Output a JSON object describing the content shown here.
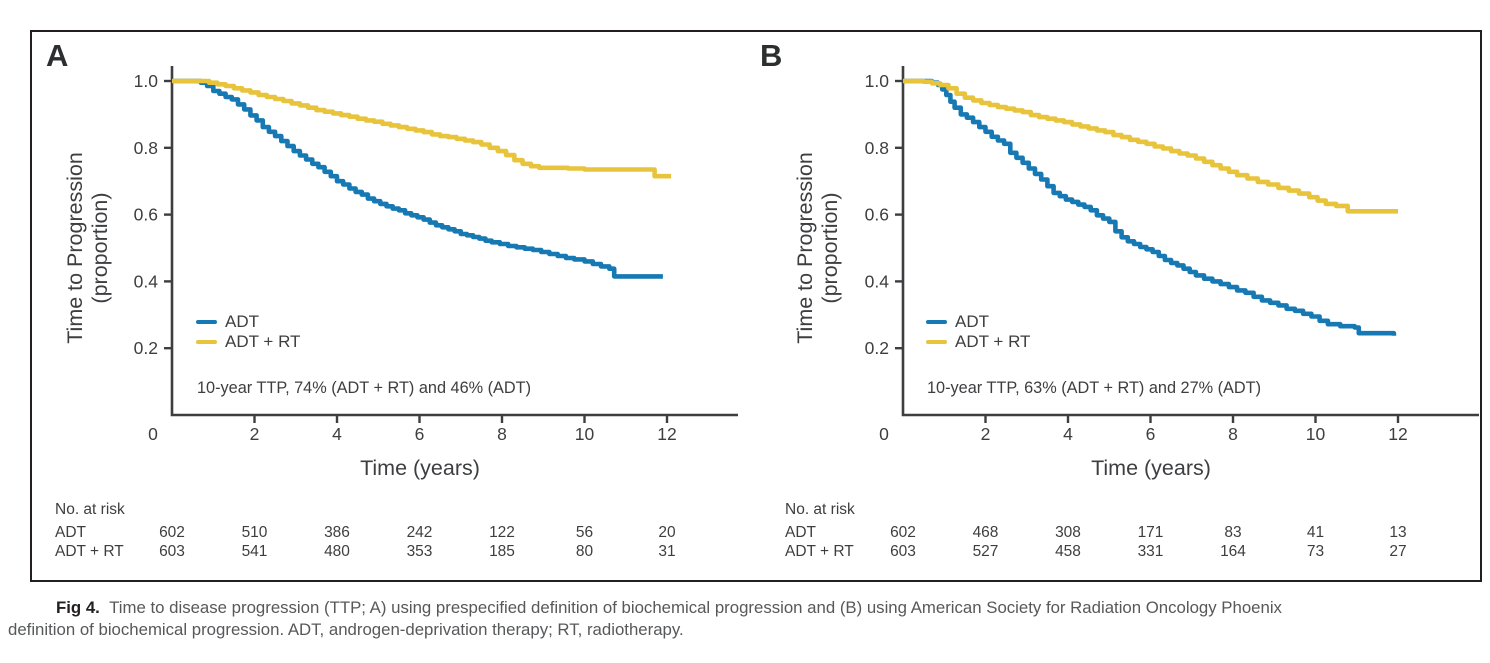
{
  "figure": {
    "caption": {
      "label": "Fig 4.",
      "line1": "Time to disease progression (TTP; A) using prespecified definition of biochemical progression and (B) using American Society for Radiation Oncology Phoenix",
      "line2": "definition of biochemical progression. ADT, androgen-deprivation therapy; RT, radiotherapy."
    },
    "colors": {
      "adt": "#1779b4",
      "adt_rt": "#e8c43c",
      "axis": "#3d3e40",
      "caption_text": "#57585a",
      "border": "#231f20"
    }
  },
  "chart_data": [
    {
      "type": "line",
      "panel": "A",
      "xlabel": "Time (years)",
      "ylabel_line1": "Time to Progression",
      "ylabel_line2": "(proportion)",
      "xlim": [
        0,
        13.7
      ],
      "ylim": [
        0,
        1.0
      ],
      "xticks": [
        0,
        2,
        4,
        6,
        8,
        10,
        12
      ],
      "yticks": [
        1.0,
        0.8,
        0.6,
        0.4,
        0.2
      ],
      "grid": false,
      "legend_position": "lower-left",
      "legend": [
        {
          "name": "ADT",
          "color_key": "adt"
        },
        {
          "name": "ADT + RT",
          "color_key": "adt_rt"
        }
      ],
      "annotation": "10-year TTP, 74% (ADT + RT) and 46% (ADT)",
      "series": [
        {
          "name": "ADT",
          "color_key": "adt",
          "step_points": [
            [
              0,
              1
            ],
            [
              0.55,
              1
            ],
            [
              0.7,
              0.995
            ],
            [
              0.85,
              0.985
            ],
            [
              1.0,
              0.97
            ],
            [
              1.15,
              0.962
            ],
            [
              1.3,
              0.952
            ],
            [
              1.45,
              0.945
            ],
            [
              1.6,
              0.93
            ],
            [
              1.75,
              0.915
            ],
            [
              1.9,
              0.897
            ],
            [
              2.05,
              0.882
            ],
            [
              2.2,
              0.862
            ],
            [
              2.35,
              0.848
            ],
            [
              2.5,
              0.835
            ],
            [
              2.65,
              0.82
            ],
            [
              2.8,
              0.805
            ],
            [
              2.95,
              0.79
            ],
            [
              3.1,
              0.777
            ],
            [
              3.25,
              0.765
            ],
            [
              3.4,
              0.752
            ],
            [
              3.55,
              0.742
            ],
            [
              3.7,
              0.728
            ],
            [
              3.85,
              0.715
            ],
            [
              4.0,
              0.7
            ],
            [
              4.15,
              0.69
            ],
            [
              4.3,
              0.678
            ],
            [
              4.45,
              0.668
            ],
            [
              4.6,
              0.66
            ],
            [
              4.75,
              0.648
            ],
            [
              4.9,
              0.64
            ],
            [
              5.05,
              0.632
            ],
            [
              5.2,
              0.625
            ],
            [
              5.35,
              0.618
            ],
            [
              5.5,
              0.613
            ],
            [
              5.65,
              0.604
            ],
            [
              5.8,
              0.598
            ],
            [
              5.95,
              0.592
            ],
            [
              6.1,
              0.585
            ],
            [
              6.25,
              0.576
            ],
            [
              6.4,
              0.568
            ],
            [
              6.55,
              0.562
            ],
            [
              6.7,
              0.556
            ],
            [
              6.85,
              0.55
            ],
            [
              7.0,
              0.542
            ],
            [
              7.15,
              0.538
            ],
            [
              7.3,
              0.533
            ],
            [
              7.45,
              0.528
            ],
            [
              7.6,
              0.522
            ],
            [
              7.75,
              0.517
            ],
            [
              7.95,
              0.512
            ],
            [
              8.15,
              0.506
            ],
            [
              8.35,
              0.502
            ],
            [
              8.55,
              0.498
            ],
            [
              8.75,
              0.494
            ],
            [
              8.95,
              0.488
            ],
            [
              9.15,
              0.482
            ],
            [
              9.35,
              0.476
            ],
            [
              9.55,
              0.47
            ],
            [
              9.75,
              0.466
            ],
            [
              10.0,
              0.46
            ],
            [
              10.2,
              0.452
            ],
            [
              10.4,
              0.445
            ],
            [
              10.6,
              0.438
            ],
            [
              10.72,
              0.415
            ],
            [
              11.9,
              0.415
            ]
          ]
        },
        {
          "name": "ADT + RT",
          "color_key": "adt_rt",
          "step_points": [
            [
              0,
              1
            ],
            [
              0.7,
              1
            ],
            [
              0.9,
              0.995
            ],
            [
              1.1,
              0.99
            ],
            [
              1.3,
              0.985
            ],
            [
              1.5,
              0.978
            ],
            [
              1.7,
              0.972
            ],
            [
              1.9,
              0.966
            ],
            [
              2.1,
              0.958
            ],
            [
              2.3,
              0.952
            ],
            [
              2.5,
              0.946
            ],
            [
              2.7,
              0.94
            ],
            [
              2.9,
              0.933
            ],
            [
              3.1,
              0.927
            ],
            [
              3.3,
              0.92
            ],
            [
              3.5,
              0.913
            ],
            [
              3.7,
              0.908
            ],
            [
              3.9,
              0.903
            ],
            [
              4.1,
              0.898
            ],
            [
              4.3,
              0.893
            ],
            [
              4.5,
              0.887
            ],
            [
              4.7,
              0.882
            ],
            [
              4.9,
              0.878
            ],
            [
              5.1,
              0.872
            ],
            [
              5.3,
              0.867
            ],
            [
              5.5,
              0.862
            ],
            [
              5.7,
              0.857
            ],
            [
              5.9,
              0.852
            ],
            [
              6.1,
              0.847
            ],
            [
              6.3,
              0.84
            ],
            [
              6.5,
              0.835
            ],
            [
              6.7,
              0.832
            ],
            [
              6.9,
              0.827
            ],
            [
              7.1,
              0.822
            ],
            [
              7.3,
              0.817
            ],
            [
              7.5,
              0.81
            ],
            [
              7.7,
              0.8
            ],
            [
              7.9,
              0.79
            ],
            [
              8.1,
              0.778
            ],
            [
              8.3,
              0.763
            ],
            [
              8.5,
              0.752
            ],
            [
              8.7,
              0.745
            ],
            [
              8.9,
              0.74
            ],
            [
              9.6,
              0.738
            ],
            [
              10.0,
              0.735
            ],
            [
              11.62,
              0.735
            ],
            [
              11.7,
              0.715
            ],
            [
              12.1,
              0.715
            ]
          ]
        }
      ],
      "risk_table": {
        "title": "No. at risk",
        "times": [
          0,
          2,
          4,
          6,
          8,
          10,
          12
        ],
        "rows": [
          {
            "label": "ADT",
            "values": [
              "602",
              "510",
              "386",
              "242",
              "122",
              "56",
              "20"
            ]
          },
          {
            "label": "ADT + RT",
            "values": [
              "603",
              "541",
              "480",
              "353",
              "185",
              "80",
              "31"
            ]
          }
        ]
      }
    },
    {
      "type": "line",
      "panel": "B",
      "xlabel": "Time (years)",
      "ylabel_line1": "Time to Progression",
      "ylabel_line2": "(proportion)",
      "xlim": [
        0,
        13.7
      ],
      "ylim": [
        0,
        1.0
      ],
      "xticks": [
        0,
        2,
        4,
        6,
        8,
        10,
        12
      ],
      "yticks": [
        1.0,
        0.8,
        0.6,
        0.4,
        0.2
      ],
      "grid": false,
      "legend_position": "lower-left",
      "legend": [
        {
          "name": "ADT",
          "color_key": "adt"
        },
        {
          "name": "ADT + RT",
          "color_key": "adt_rt"
        }
      ],
      "annotation": "10-year TTP, 63% (ADT + RT) and 27% (ADT)",
      "series": [
        {
          "name": "ADT",
          "color_key": "adt",
          "step_points": [
            [
              0,
              1
            ],
            [
              0.55,
              1
            ],
            [
              0.7,
              0.995
            ],
            [
              0.85,
              0.988
            ],
            [
              0.95,
              0.975
            ],
            [
              1.05,
              0.958
            ],
            [
              1.15,
              0.938
            ],
            [
              1.25,
              0.92
            ],
            [
              1.4,
              0.9
            ],
            [
              1.55,
              0.89
            ],
            [
              1.7,
              0.877
            ],
            [
              1.85,
              0.862
            ],
            [
              2.0,
              0.848
            ],
            [
              2.15,
              0.833
            ],
            [
              2.3,
              0.822
            ],
            [
              2.45,
              0.812
            ],
            [
              2.6,
              0.785
            ],
            [
              2.75,
              0.77
            ],
            [
              2.9,
              0.755
            ],
            [
              3.05,
              0.738
            ],
            [
              3.2,
              0.722
            ],
            [
              3.35,
              0.705
            ],
            [
              3.5,
              0.685
            ],
            [
              3.65,
              0.665
            ],
            [
              3.8,
              0.655
            ],
            [
              3.95,
              0.645
            ],
            [
              4.1,
              0.638
            ],
            [
              4.25,
              0.63
            ],
            [
              4.4,
              0.623
            ],
            [
              4.55,
              0.613
            ],
            [
              4.7,
              0.598
            ],
            [
              4.85,
              0.588
            ],
            [
              5.0,
              0.578
            ],
            [
              5.15,
              0.55
            ],
            [
              5.3,
              0.532
            ],
            [
              5.45,
              0.52
            ],
            [
              5.6,
              0.512
            ],
            [
              5.75,
              0.503
            ],
            [
              5.9,
              0.496
            ],
            [
              6.05,
              0.488
            ],
            [
              6.2,
              0.476
            ],
            [
              6.35,
              0.464
            ],
            [
              6.5,
              0.455
            ],
            [
              6.65,
              0.448
            ],
            [
              6.8,
              0.438
            ],
            [
              6.95,
              0.428
            ],
            [
              7.1,
              0.418
            ],
            [
              7.3,
              0.408
            ],
            [
              7.5,
              0.4
            ],
            [
              7.7,
              0.392
            ],
            [
              7.9,
              0.383
            ],
            [
              8.1,
              0.373
            ],
            [
              8.3,
              0.366
            ],
            [
              8.5,
              0.354
            ],
            [
              8.7,
              0.343
            ],
            [
              8.9,
              0.336
            ],
            [
              9.1,
              0.328
            ],
            [
              9.3,
              0.318
            ],
            [
              9.5,
              0.312
            ],
            [
              9.7,
              0.303
            ],
            [
              9.9,
              0.295
            ],
            [
              10.1,
              0.282
            ],
            [
              10.3,
              0.272
            ],
            [
              10.6,
              0.266
            ],
            [
              10.95,
              0.262
            ],
            [
              11.05,
              0.245
            ],
            [
              11.8,
              0.245
            ],
            [
              11.9,
              0.237
            ]
          ]
        },
        {
          "name": "ADT + RT",
          "color_key": "adt_rt",
          "step_points": [
            [
              0,
              1
            ],
            [
              0.5,
              0.998
            ],
            [
              0.7,
              0.993
            ],
            [
              0.9,
              0.988
            ],
            [
              1.1,
              0.978
            ],
            [
              1.3,
              0.962
            ],
            [
              1.5,
              0.95
            ],
            [
              1.7,
              0.942
            ],
            [
              1.9,
              0.934
            ],
            [
              2.1,
              0.928
            ],
            [
              2.3,
              0.922
            ],
            [
              2.5,
              0.917
            ],
            [
              2.7,
              0.912
            ],
            [
              2.9,
              0.907
            ],
            [
              3.1,
              0.898
            ],
            [
              3.3,
              0.892
            ],
            [
              3.5,
              0.887
            ],
            [
              3.7,
              0.882
            ],
            [
              3.9,
              0.877
            ],
            [
              4.1,
              0.87
            ],
            [
              4.3,
              0.864
            ],
            [
              4.5,
              0.858
            ],
            [
              4.7,
              0.852
            ],
            [
              4.9,
              0.847
            ],
            [
              5.1,
              0.838
            ],
            [
              5.3,
              0.832
            ],
            [
              5.5,
              0.824
            ],
            [
              5.7,
              0.818
            ],
            [
              5.9,
              0.812
            ],
            [
              6.1,
              0.804
            ],
            [
              6.3,
              0.798
            ],
            [
              6.5,
              0.79
            ],
            [
              6.7,
              0.783
            ],
            [
              6.9,
              0.777
            ],
            [
              7.1,
              0.768
            ],
            [
              7.3,
              0.758
            ],
            [
              7.5,
              0.748
            ],
            [
              7.7,
              0.738
            ],
            [
              7.9,
              0.728
            ],
            [
              8.1,
              0.718
            ],
            [
              8.35,
              0.708
            ],
            [
              8.6,
              0.698
            ],
            [
              8.85,
              0.69
            ],
            [
              9.1,
              0.68
            ],
            [
              9.35,
              0.672
            ],
            [
              9.6,
              0.663
            ],
            [
              9.85,
              0.652
            ],
            [
              10.05,
              0.642
            ],
            [
              10.25,
              0.632
            ],
            [
              10.5,
              0.626
            ],
            [
              10.78,
              0.61
            ],
            [
              12.0,
              0.61
            ]
          ]
        }
      ],
      "risk_table": {
        "title": "No. at risk",
        "times": [
          0,
          2,
          4,
          6,
          8,
          10,
          12
        ],
        "rows": [
          {
            "label": "ADT",
            "values": [
              "602",
              "468",
              "308",
              "171",
              "83",
              "41",
              "13"
            ]
          },
          {
            "label": "ADT + RT",
            "values": [
              "603",
              "527",
              "458",
              "331",
              "164",
              "73",
              "27"
            ]
          }
        ]
      }
    }
  ]
}
